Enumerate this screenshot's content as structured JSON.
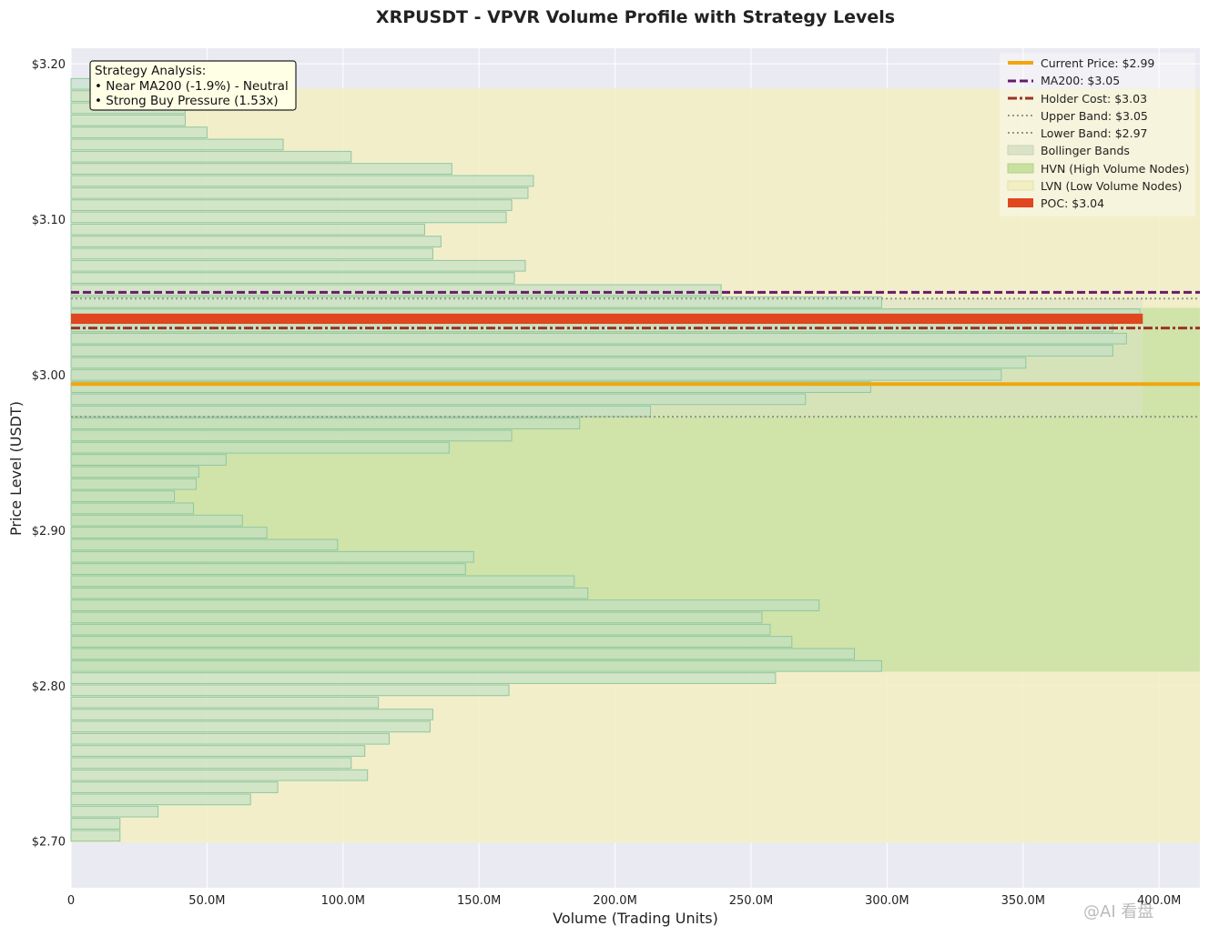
{
  "chart_data": {
    "type": "bar",
    "orientation": "horizontal",
    "title": "XRPUSDT - VPVR Volume Profile with Strategy Levels",
    "xlabel": "Volume (Trading Units)",
    "ylabel": "Price Level (USDT)",
    "xlim": [
      0,
      415000000
    ],
    "ylim": [
      2.67,
      3.21
    ],
    "x_ticks": [
      {
        "value": 0,
        "label": "0"
      },
      {
        "value": 50000000,
        "label": "50.0M"
      },
      {
        "value": 100000000,
        "label": "100.0M"
      },
      {
        "value": 150000000,
        "label": "150.0M"
      },
      {
        "value": 200000000,
        "label": "200.0M"
      },
      {
        "value": 250000000,
        "label": "250.0M"
      },
      {
        "value": 300000000,
        "label": "300.0M"
      },
      {
        "value": 350000000,
        "label": "350.0M"
      },
      {
        "value": 400000000,
        "label": "400.0M"
      }
    ],
    "y_ticks": [
      {
        "value": 2.7,
        "label": "$2.70"
      },
      {
        "value": 2.8,
        "label": "$2.80"
      },
      {
        "value": 2.9,
        "label": "$2.90"
      },
      {
        "value": 3.0,
        "label": "$3.00"
      },
      {
        "value": 3.1,
        "label": "$3.10"
      },
      {
        "value": 3.2,
        "label": "$3.20"
      }
    ],
    "bins": {
      "price": [
        2.7,
        2.7078,
        2.7156,
        2.7234,
        2.7312,
        2.739,
        2.7468,
        2.7546,
        2.7624,
        2.7702,
        2.778,
        2.7858,
        2.7936,
        2.8014,
        2.8092,
        2.817,
        2.8248,
        2.8326,
        2.8404,
        2.8482,
        2.856,
        2.8638,
        2.8716,
        2.8794,
        2.8872,
        2.895,
        2.9028,
        2.9106,
        2.9184,
        2.9262,
        2.934,
        2.9418,
        2.9496,
        2.9574,
        2.9652,
        2.973,
        2.9808,
        2.9886,
        2.9964,
        3.0042,
        3.012,
        3.0198,
        3.0276,
        3.0354,
        3.0432,
        3.051,
        3.0588,
        3.0666,
        3.0744,
        3.0822,
        3.09,
        3.0978,
        3.1056,
        3.1134,
        3.1212,
        3.129,
        3.1368,
        3.1446,
        3.1524,
        3.1602,
        3.168,
        3.1758,
        3.1836
      ],
      "volume": [
        18000000,
        18000000,
        32000000,
        66000000,
        76000000,
        109000000,
        103000000,
        108000000,
        117000000,
        132000000,
        133000000,
        113000000,
        161000000,
        259000000,
        298000000,
        288000000,
        265000000,
        257000000,
        254000000,
        275000000,
        190000000,
        185000000,
        145000000,
        148000000,
        98000000,
        72000000,
        63000000,
        45000000,
        38000000,
        46000000,
        47000000,
        57000000,
        139000000,
        162000000,
        187000000,
        213000000,
        270000000,
        294000000,
        342000000,
        351000000,
        383000000,
        388000000,
        383000000,
        393000000,
        298000000,
        239000000,
        163000000,
        167000000,
        133000000,
        136000000,
        130000000,
        160000000,
        162000000,
        168000000,
        170000000,
        140000000,
        103000000,
        78000000,
        50000000,
        42000000,
        42000000,
        42000000,
        40000000
      ],
      "bin_height": 0.0078
    },
    "poc": {
      "price": 3.036,
      "volume": 394000000,
      "label": "POC: $3.04",
      "color": "#e0461f"
    },
    "levels": [
      {
        "name": "Current Price: $2.99",
        "value": 2.994,
        "color": "#f2a60d",
        "style": "solid",
        "width": 4
      },
      {
        "name": "MA200: $3.05",
        "value": 3.053,
        "color": "#6b1a6e",
        "style": "dash",
        "width": 3
      },
      {
        "name": "Holder Cost: $3.03",
        "value": 3.03,
        "color": "#9a3426",
        "style": "dashdot",
        "width": 3
      },
      {
        "name": "Upper Band: $3.05",
        "value": 3.049,
        "color": "#909a89",
        "style": "dot",
        "width": 2
      },
      {
        "name": "Lower Band: $2.97",
        "value": 2.973,
        "color": "#8f968a",
        "style": "dot",
        "width": 2
      }
    ],
    "bands": {
      "bollinger": {
        "name": "Bollinger Bands",
        "from": 2.973,
        "to": 3.049,
        "xmax": 394000000
      },
      "hvn": {
        "name": "HVN (High Volume Nodes)",
        "from": 2.809,
        "to": 3.043
      },
      "lvn": {
        "name": "LVN (Low Volume Nodes)",
        "from": 2.699,
        "to": 3.184
      }
    },
    "legend_position": "top-right",
    "grid": true,
    "annotation": {
      "lines": [
        "Strategy Analysis:",
        "• Near MA200 (-1.9%) - Neutral",
        "• Strong Buy Pressure (1.53x)"
      ],
      "position": "top-left"
    },
    "colors": {
      "plot_bg": "#eaeaf2",
      "bar_fill": "#bfe0c6",
      "bar_stroke": "#8fc6a0",
      "hvn_fill": "#c8e0a0",
      "lvn_fill": "#f2efc2",
      "bollinger_fill": "#dbe3c6"
    }
  },
  "watermark": "@AI 看盘"
}
